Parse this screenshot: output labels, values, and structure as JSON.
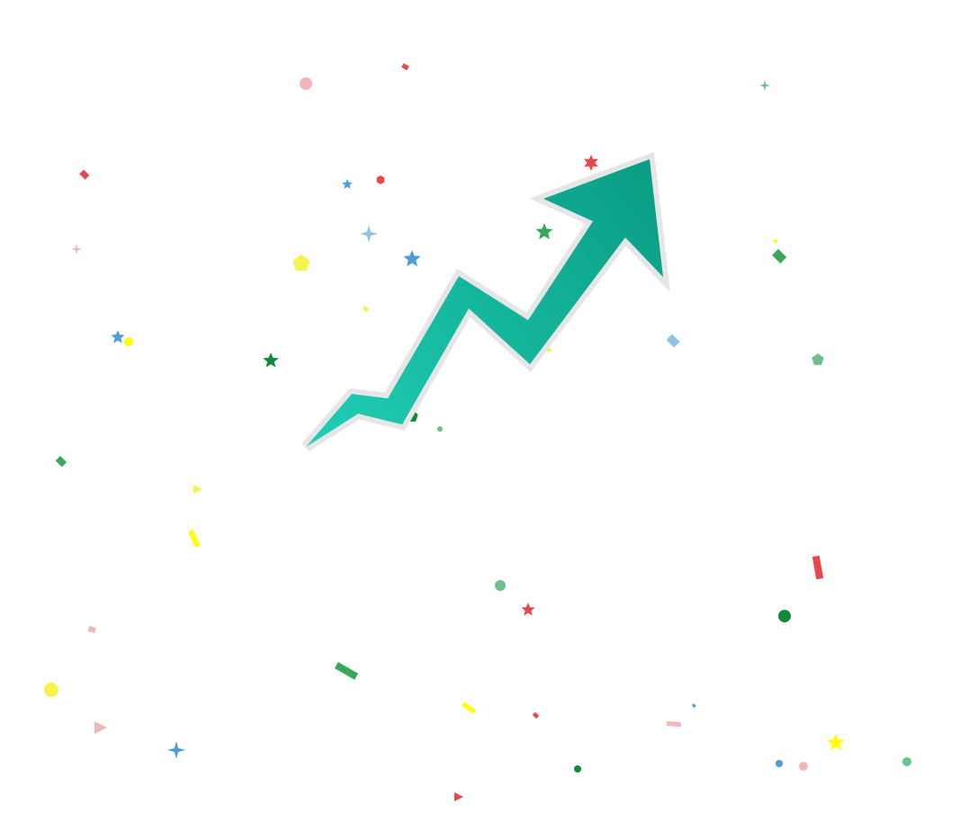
{
  "illustration": {
    "subject": "trend-up-arrow",
    "background_color": "#ffffff",
    "arrow": {
      "icon": "zigzag-up-arrow",
      "fill_gradient": [
        "#1fcfb5",
        "#0a9c83"
      ],
      "outline_color": "#e7e7e7"
    },
    "confetti": {
      "palette": [
        "#e8474b",
        "#f2b6b8",
        "#37a85a",
        "#0f8c3a",
        "#6cc08b",
        "#4a9fd8",
        "#8ec3ea",
        "#f7f34a",
        "#ffff00"
      ]
    }
  }
}
